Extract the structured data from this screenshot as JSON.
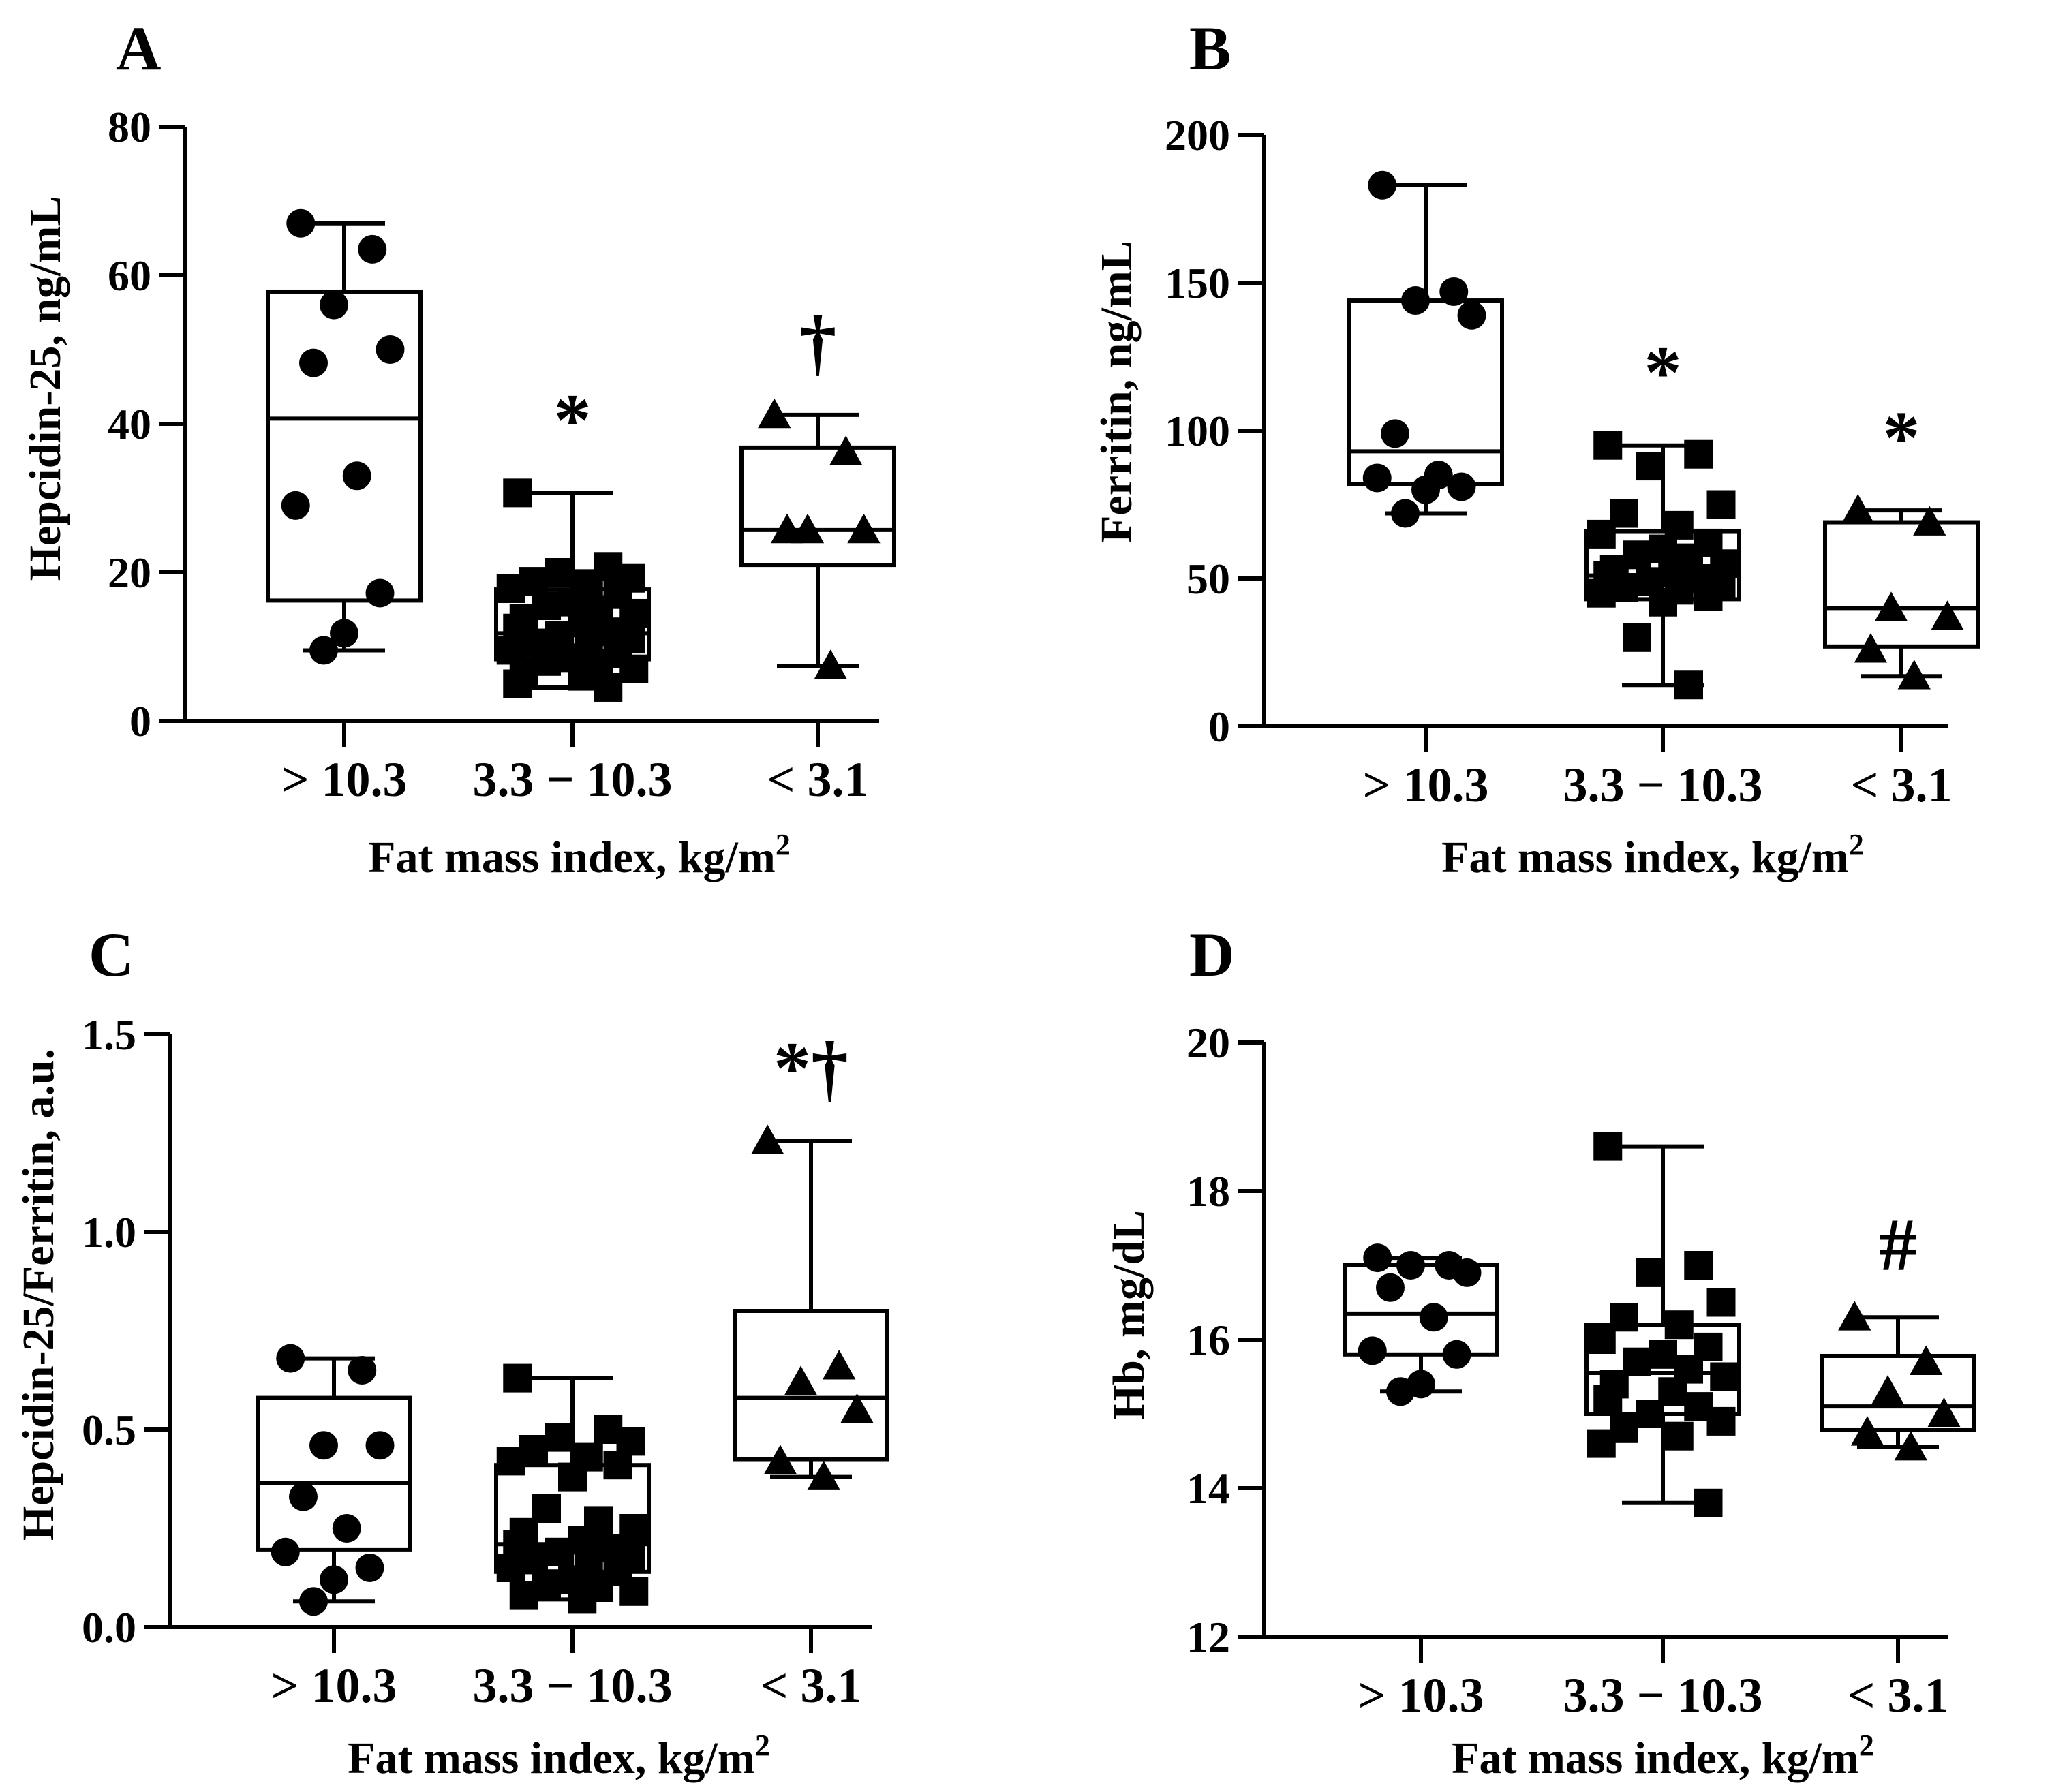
{
  "figure": {
    "xlabel": "Fat mass index, kg/m",
    "xlabel_sup": "2"
  },
  "chart_data": [
    {
      "type": "box",
      "panel_label": "A",
      "title": "",
      "ylabel": "Hepcidin-25, ng/mL",
      "xlabel": "Fat mass index, kg/m²",
      "categories": [
        "> 10.3",
        "3.3 − 10.3",
        "< 3.1"
      ],
      "ylim": [
        0,
        80
      ],
      "yticks": [
        0,
        20,
        40,
        60,
        80
      ],
      "ytick_labels": [
        "0",
        "20",
        "40",
        "60",
        "80"
      ],
      "marker": [
        "circle",
        "square",
        "triangle"
      ],
      "boxes": [
        {
          "min": 9.5,
          "q1": 16.2,
          "median": 40.7,
          "q3": 57.8,
          "max": 67
        },
        {
          "min": 4.5,
          "q1": 8.3,
          "median": 11.8,
          "q3": 17.7,
          "max": 30.7
        },
        {
          "min": 7.4,
          "q1": 21.0,
          "median": 25.7,
          "q3": 36.8,
          "max": 41.2
        }
      ],
      "points": [
        [
          67,
          63.5,
          56,
          50,
          48.2,
          33,
          29,
          17.2,
          11.8,
          9.5
        ],
        [
          30.7,
          20.8,
          20,
          19.2,
          18.8,
          18.5,
          17.8,
          17,
          16,
          15.5,
          15,
          14.5,
          13.8,
          13.2,
          12.5,
          12,
          11.5,
          11,
          10.5,
          10,
          9.5,
          9,
          8.5,
          8,
          7.8,
          7,
          6.5,
          6,
          5,
          4.5
        ],
        [
          41.2,
          36.2,
          25.7,
          25.7,
          25.7,
          7.4
        ]
      ],
      "annotations": [
        "",
        "*",
        "†"
      ]
    },
    {
      "type": "box",
      "panel_label": "B",
      "title": "",
      "ylabel": "Ferritin, ng/mL",
      "xlabel": "Fat mass index, kg/m²",
      "categories": [
        "> 10.3",
        "3.3 − 10.3",
        "< 3.1"
      ],
      "ylim": [
        0,
        200
      ],
      "yticks": [
        0,
        50,
        100,
        150,
        200
      ],
      "ytick_labels": [
        "0",
        "50",
        "100",
        "150",
        "200"
      ],
      "marker": [
        "circle",
        "square",
        "triangle"
      ],
      "boxes": [
        {
          "min": 72,
          "q1": 82,
          "median": 93,
          "q3": 144,
          "max": 183
        },
        {
          "min": 14,
          "q1": 43,
          "median": 51,
          "q3": 66,
          "max": 95
        },
        {
          "min": 17,
          "q1": 27,
          "median": 40,
          "q3": 69,
          "max": 73
        }
      ],
      "points": [
        [
          183,
          147,
          144,
          139,
          99,
          85,
          84,
          81,
          80,
          72
        ],
        [
          95,
          92,
          88,
          75,
          72,
          68,
          65,
          62,
          60,
          58,
          57,
          55,
          53,
          52,
          51,
          50,
          49,
          48,
          47,
          46,
          45,
          44,
          42,
          30,
          14
        ],
        [
          73,
          69,
          40,
          37,
          26,
          17
        ]
      ],
      "annotations": [
        "",
        "*",
        "*"
      ]
    },
    {
      "type": "box",
      "panel_label": "C",
      "title": "",
      "ylabel": "Hepcidin-25/Ferritin, a.u.",
      "xlabel": "Fat mass index, kg/m²",
      "categories": [
        "> 10.3",
        "3.3 − 10.3",
        "< 3.1"
      ],
      "ylim": [
        0,
        1.5
      ],
      "yticks": [
        0,
        0.5,
        1.0,
        1.5
      ],
      "ytick_labels": [
        "0.0",
        "0.5",
        "1.0",
        "1.5"
      ],
      "marker": [
        "circle",
        "square",
        "triangle"
      ],
      "boxes": [
        {
          "min": 0.065,
          "q1": 0.195,
          "median": 0.365,
          "q3": 0.58,
          "max": 0.68
        },
        {
          "min": 0.07,
          "q1": 0.14,
          "median": 0.21,
          "q3": 0.41,
          "max": 0.63
        },
        {
          "min": 0.38,
          "q1": 0.425,
          "median": 0.58,
          "q3": 0.8,
          "max": 1.23
        }
      ],
      "points": [
        [
          0.68,
          0.65,
          0.46,
          0.46,
          0.33,
          0.25,
          0.19,
          0.15,
          0.12,
          0.065
        ],
        [
          0.63,
          0.5,
          0.48,
          0.47,
          0.45,
          0.43,
          0.42,
          0.41,
          0.38,
          0.3,
          0.27,
          0.25,
          0.24,
          0.22,
          0.21,
          0.2,
          0.19,
          0.18,
          0.17,
          0.16,
          0.15,
          0.14,
          0.12,
          0.11,
          0.1,
          0.09,
          0.08,
          0.07
        ],
        [
          1.23,
          0.66,
          0.62,
          0.55,
          0.42,
          0.38
        ]
      ],
      "annotations": [
        "",
        "",
        "*†"
      ]
    },
    {
      "type": "box",
      "panel_label": "D",
      "title": "",
      "ylabel": "Hb, mg/dL",
      "xlabel": "Fat mass index, kg/m²",
      "categories": [
        "> 10.3",
        "3.3 − 10.3",
        "< 3.1"
      ],
      "ylim": [
        12,
        20
      ],
      "yticks": [
        12,
        14,
        16,
        18,
        20
      ],
      "ytick_labels": [
        "12",
        "14",
        "16",
        "18",
        "20"
      ],
      "marker": [
        "circle",
        "square",
        "triangle"
      ],
      "boxes": [
        {
          "min": 15.3,
          "q1": 15.8,
          "median": 16.35,
          "q3": 17.0,
          "max": 17.1
        },
        {
          "min": 13.8,
          "q1": 15.0,
          "median": 15.55,
          "q3": 16.2,
          "max": 18.6
        },
        {
          "min": 14.55,
          "q1": 14.78,
          "median": 15.1,
          "q3": 15.78,
          "max": 16.3
        }
      ],
      "points": [
        [
          17.1,
          17.0,
          17.0,
          16.9,
          16.7,
          16.3,
          15.85,
          15.8,
          15.4,
          15.3
        ],
        [
          18.6,
          17.0,
          16.9,
          16.5,
          16.3,
          16.2,
          16.0,
          15.9,
          15.8,
          15.7,
          15.6,
          15.5,
          15.4,
          15.3,
          15.2,
          15.1,
          15.0,
          14.9,
          14.8,
          14.7,
          14.6,
          13.8
        ],
        [
          16.3,
          15.7,
          15.3,
          15.0,
          14.75,
          14.55
        ]
      ],
      "annotations": [
        "",
        "",
        "#"
      ]
    }
  ]
}
